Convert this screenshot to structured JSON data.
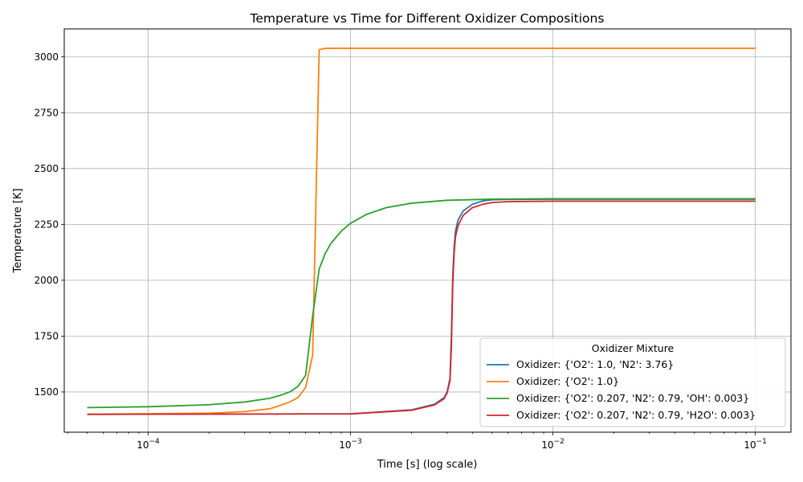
{
  "chart_data": {
    "type": "line",
    "title": "Temperature vs Time for Different Oxidizer Compositions",
    "xlabel": "Time [s] (log scale)",
    "ylabel": "Temperature [K]",
    "xscale": "log",
    "xlim": [
      3.85e-05,
      0.15
    ],
    "ylim": [
      1320,
      3125
    ],
    "grid": true,
    "xticks": [
      0.0001,
      0.001,
      0.01,
      0.1
    ],
    "xtick_labels": [
      {
        "base": "10",
        "exp": "−4"
      },
      {
        "base": "10",
        "exp": "−3"
      },
      {
        "base": "10",
        "exp": "−2"
      },
      {
        "base": "10",
        "exp": "−1"
      }
    ],
    "yticks": [
      1500,
      1750,
      2000,
      2250,
      2500,
      2750,
      3000
    ],
    "legend": {
      "title": "Oxidizer Mixture",
      "placement": "lower-right"
    },
    "series": [
      {
        "name": "Oxidizer: {'O2': 1.0, 'N2': 3.76}",
        "color": "#1f77b4",
        "x": [
          5e-05,
          0.001,
          0.002,
          0.0026,
          0.0029,
          0.003,
          0.0031,
          0.00315,
          0.0032,
          0.00325,
          0.0033,
          0.0034,
          0.0036,
          0.004,
          0.0045,
          0.005,
          0.006,
          0.01,
          0.1
        ],
        "y": [
          1400,
          1402,
          1420,
          1445,
          1475,
          1500,
          1560,
          1750,
          2020,
          2150,
          2220,
          2270,
          2310,
          2340,
          2355,
          2360,
          2362,
          2363,
          2363
        ]
      },
      {
        "name": "Oxidizer: {'O2': 1.0}",
        "color": "#ff7f0e",
        "x": [
          5e-05,
          0.0002,
          0.0003,
          0.0004,
          0.00045,
          0.0005,
          0.00055,
          0.0006,
          0.00065,
          0.0007,
          0.00075,
          0.001,
          0.01,
          0.1
        ],
        "y": [
          1400,
          1405,
          1412,
          1425,
          1440,
          1455,
          1475,
          1520,
          1665,
          3033,
          3038,
          3038,
          3038,
          3038
        ]
      },
      {
        "name": "Oxidizer: {'O2': 0.207, 'N2': 0.79, 'OH': 0.003}",
        "color": "#2ca02c",
        "x": [
          5e-05,
          0.0001,
          0.0002,
          0.0003,
          0.0004,
          0.00045,
          0.0005,
          0.00055,
          0.0006,
          0.00065,
          0.0007,
          0.00075,
          0.0008,
          0.0009,
          0.001,
          0.0012,
          0.0015,
          0.002,
          0.003,
          0.005,
          0.01,
          0.1
        ],
        "y": [
          1430,
          1434,
          1443,
          1455,
          1472,
          1485,
          1500,
          1525,
          1575,
          1840,
          2050,
          2120,
          2165,
          2220,
          2255,
          2295,
          2325,
          2345,
          2358,
          2363,
          2365,
          2365
        ]
      },
      {
        "name": "Oxidizer: {'O2': 0.207, 'N2': 0.79, 'H2O': 0.003}",
        "color": "#d62728",
        "x": [
          5e-05,
          0.001,
          0.002,
          0.0026,
          0.0029,
          0.003,
          0.0031,
          0.00315,
          0.0032,
          0.00325,
          0.0033,
          0.0034,
          0.0036,
          0.004,
          0.0045,
          0.005,
          0.006,
          0.01,
          0.1
        ],
        "y": [
          1400,
          1402,
          1418,
          1442,
          1470,
          1495,
          1550,
          1700,
          1980,
          2120,
          2195,
          2245,
          2290,
          2325,
          2340,
          2348,
          2352,
          2354,
          2354
        ]
      }
    ]
  }
}
